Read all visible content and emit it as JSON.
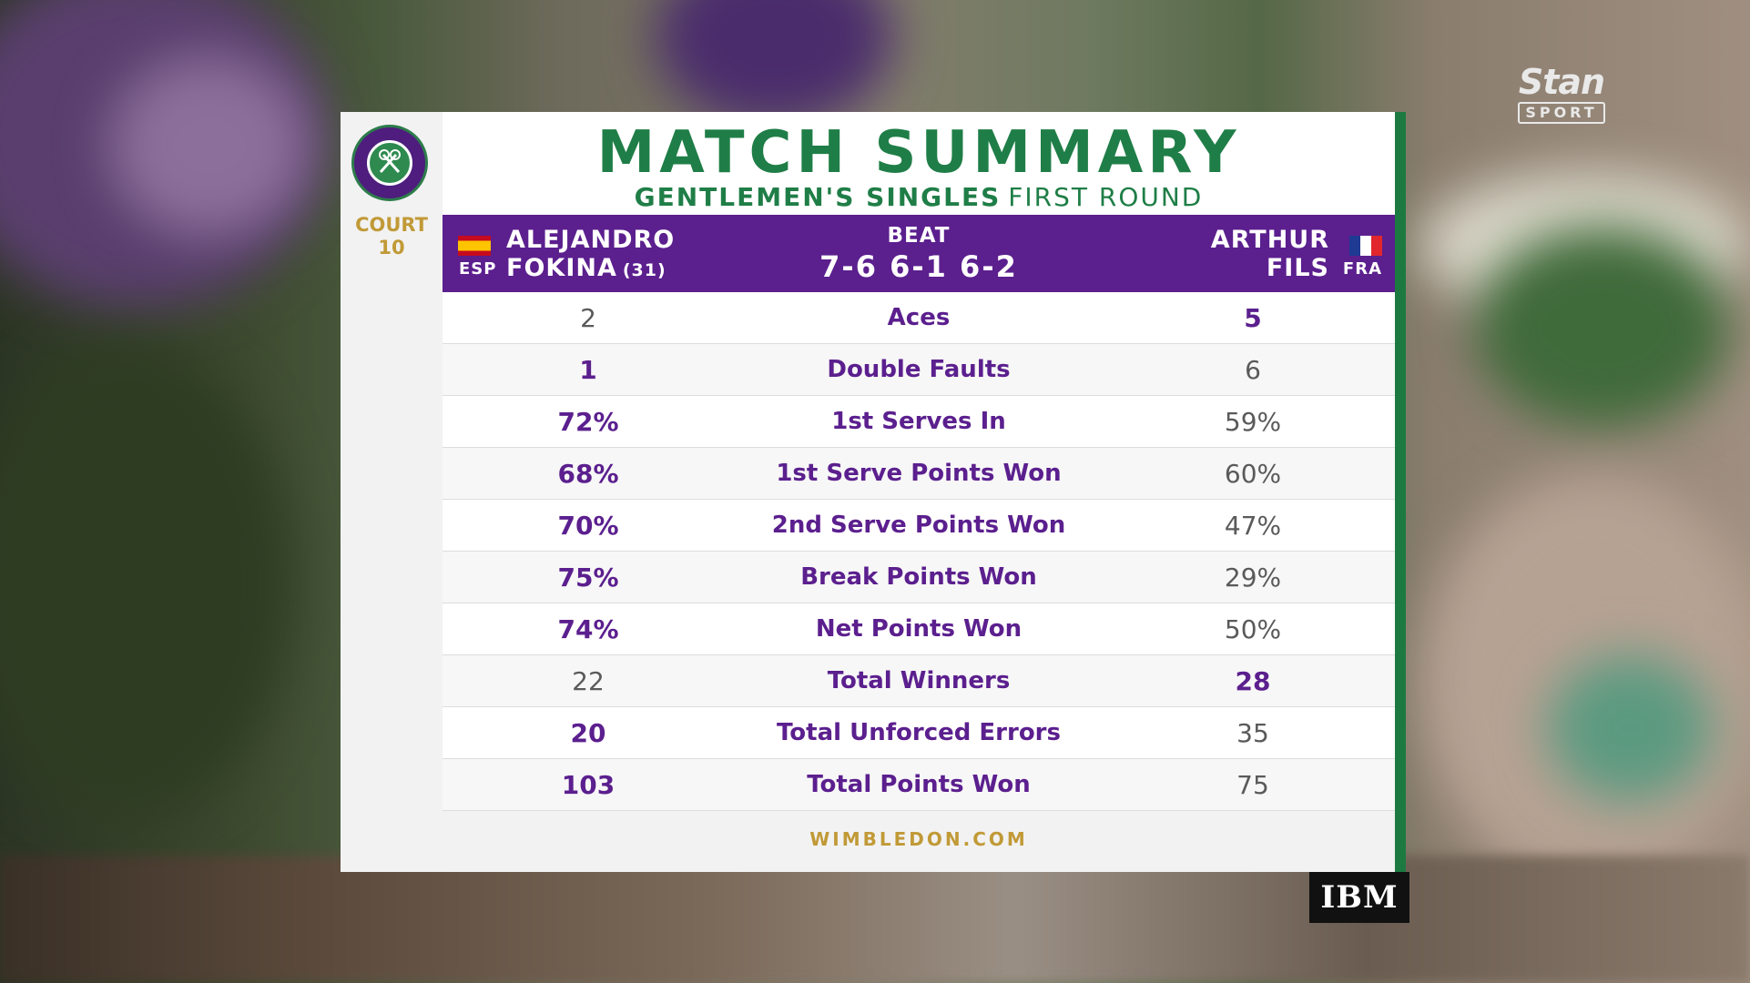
{
  "broadcaster": {
    "name": "Stan",
    "sub": "SPORT"
  },
  "event": {
    "logo_icon": "wimbledon-logo-icon",
    "court_label": "COURT",
    "court_number": "10"
  },
  "title": "MATCH SUMMARY",
  "subtitle": {
    "event": "GENTLEMEN'S SINGLES",
    "round": "FIRST ROUND"
  },
  "match": {
    "player1": {
      "first": "ALEJANDRO",
      "last": "FOKINA",
      "seed": "(31)",
      "country": "ESP",
      "flag_icon": "spain-flag-icon"
    },
    "player2": {
      "first": "ARTHUR",
      "last": "FILS",
      "country": "FRA",
      "flag_icon": "france-flag-icon"
    },
    "result_label": "BEAT",
    "score": "7-6 6-1 6-2"
  },
  "stats": [
    {
      "label": "Aces",
      "p1": "2",
      "p2": "5",
      "leader": "p2"
    },
    {
      "label": "Double Faults",
      "p1": "1",
      "p2": "6",
      "leader": "p1"
    },
    {
      "label": "1st Serves In",
      "p1": "72%",
      "p2": "59%",
      "leader": "p1"
    },
    {
      "label": "1st Serve Points Won",
      "p1": "68%",
      "p2": "60%",
      "leader": "p1"
    },
    {
      "label": "2nd Serve Points Won",
      "p1": "70%",
      "p2": "47%",
      "leader": "p1"
    },
    {
      "label": "Break Points Won",
      "p1": "75%",
      "p2": "29%",
      "leader": "p1"
    },
    {
      "label": "Net Points Won",
      "p1": "74%",
      "p2": "50%",
      "leader": "p1"
    },
    {
      "label": "Total Winners",
      "p1": "22",
      "p2": "28",
      "leader": "p2"
    },
    {
      "label": "Total Unforced Errors",
      "p1": "20",
      "p2": "35",
      "leader": "p1"
    },
    {
      "label": "Total Points Won",
      "p1": "103",
      "p2": "75",
      "leader": "p1"
    }
  ],
  "footer": "WIMBLEDON.COM",
  "sponsor": "IBM",
  "colors": {
    "purple": "#5b1f8e",
    "green": "#1f7e47",
    "gold": "#c19a37"
  }
}
